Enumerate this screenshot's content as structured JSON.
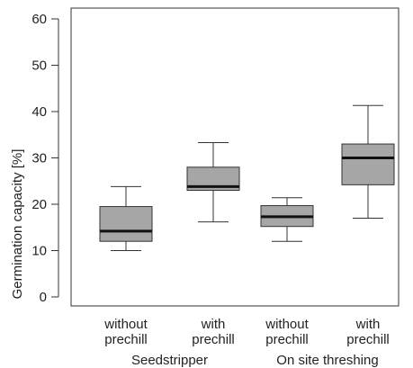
{
  "chart_data": {
    "type": "box",
    "ylabel": "Germination capacity [%]",
    "xlabel": "",
    "ylim": [
      0,
      63
    ],
    "yticks": [
      0,
      10,
      20,
      30,
      40,
      50,
      60
    ],
    "grid": false,
    "categories": [
      {
        "line1": "without",
        "line2": "prechill"
      },
      {
        "line1": "with",
        "line2": "prechill"
      },
      {
        "line1": "without",
        "line2": "prechill"
      },
      {
        "line1": "with",
        "line2": "prechill"
      }
    ],
    "groups": [
      {
        "label": "Seedstripper",
        "members": [
          0,
          1
        ]
      },
      {
        "label": "On site threshing",
        "members": [
          2,
          3
        ]
      }
    ],
    "boxes": [
      {
        "whisker_low": 10.0,
        "q1": 12.0,
        "median": 14.2,
        "q3": 19.5,
        "whisker_high": 23.8
      },
      {
        "whisker_low": 16.2,
        "q1": 23.0,
        "median": 23.8,
        "q3": 28.0,
        "whisker_high": 33.3
      },
      {
        "whisker_low": 12.0,
        "q1": 15.2,
        "median": 17.3,
        "q3": 19.7,
        "whisker_high": 21.4
      },
      {
        "whisker_low": 17.0,
        "q1": 24.2,
        "median": 30.0,
        "q3": 33.0,
        "whisker_high": 41.3
      }
    ],
    "colors": {
      "box_fill": "#a6a6a6",
      "stroke": "#333333",
      "median": "#111111"
    }
  }
}
